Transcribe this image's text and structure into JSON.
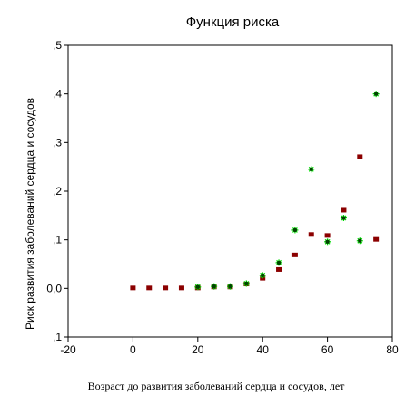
{
  "chart_data": {
    "type": "scatter",
    "title": "Функция риска",
    "xlabel": "Возраст до развития заболеваний сердца и сосудов, лет",
    "ylabel": "Риск развития заболеваний сердца и сосудов",
    "xlim": [
      -20,
      80
    ],
    "ylim": [
      -0.1,
      0.5
    ],
    "x_ticks": [
      -20,
      0,
      20,
      40,
      60,
      80
    ],
    "y_ticks": [
      -0.1,
      0.0,
      0.1,
      0.2,
      0.3,
      0.4,
      0.5
    ],
    "x_tick_labels": [
      "-20",
      "0",
      "20",
      "40",
      "60",
      "80"
    ],
    "y_tick_labels": [
      ",1",
      "0,0",
      ",1",
      ",2",
      ",3",
      ",4",
      ",5"
    ],
    "grid": false,
    "series": [
      {
        "marker": "square",
        "color": "#8b0000",
        "points": [
          [
            0,
            0.0
          ],
          [
            5,
            0.0
          ],
          [
            10,
            0.0
          ],
          [
            15,
            0.0
          ],
          [
            20,
            0.0
          ],
          [
            25,
            0.002
          ],
          [
            30,
            0.002
          ],
          [
            35,
            0.008
          ],
          [
            40,
            0.02
          ],
          [
            45,
            0.038
          ],
          [
            50,
            0.068
          ],
          [
            55,
            0.11
          ],
          [
            60,
            0.108
          ],
          [
            65,
            0.16
          ],
          [
            70,
            0.27
          ],
          [
            75,
            0.1
          ]
        ]
      },
      {
        "marker": "asterisk",
        "color": "#00dd00",
        "points": [
          [
            20,
            0.003
          ],
          [
            25,
            0.004
          ],
          [
            30,
            0.004
          ],
          [
            35,
            0.01
          ],
          [
            40,
            0.027
          ],
          [
            45,
            0.053
          ],
          [
            50,
            0.12
          ],
          [
            55,
            0.245
          ],
          [
            60,
            0.096
          ],
          [
            65,
            0.145
          ],
          [
            70,
            0.098
          ],
          [
            75,
            0.4
          ]
        ]
      }
    ]
  }
}
